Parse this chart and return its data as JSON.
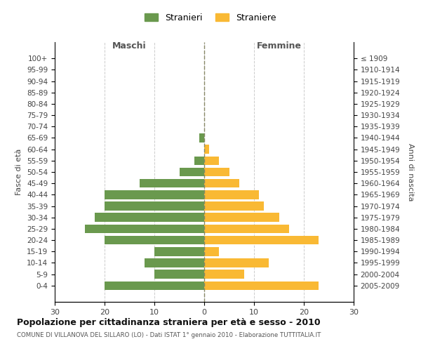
{
  "age_groups_bottom_to_top": [
    "0-4",
    "5-9",
    "10-14",
    "15-19",
    "20-24",
    "25-29",
    "30-34",
    "35-39",
    "40-44",
    "45-49",
    "50-54",
    "55-59",
    "60-64",
    "65-69",
    "70-74",
    "75-79",
    "80-84",
    "85-89",
    "90-94",
    "95-99",
    "100+"
  ],
  "birth_years_bottom_to_top": [
    "2005-2009",
    "2000-2004",
    "1995-1999",
    "1990-1994",
    "1985-1989",
    "1980-1984",
    "1975-1979",
    "1970-1974",
    "1965-1969",
    "1960-1964",
    "1955-1959",
    "1950-1954",
    "1945-1949",
    "1940-1944",
    "1935-1939",
    "1930-1934",
    "1925-1929",
    "1920-1924",
    "1915-1919",
    "1910-1914",
    "≤ 1909"
  ],
  "males_bottom_to_top": [
    20,
    10,
    12,
    10,
    20,
    24,
    22,
    20,
    20,
    13,
    5,
    2,
    0,
    1,
    0,
    0,
    0,
    0,
    0,
    0,
    0
  ],
  "females_bottom_to_top": [
    23,
    8,
    13,
    3,
    23,
    17,
    15,
    12,
    11,
    7,
    5,
    3,
    1,
    0,
    0,
    0,
    0,
    0,
    0,
    0,
    0
  ],
  "male_color": "#6a994e",
  "female_color": "#f9b934",
  "background_color": "#ffffff",
  "grid_color": "#cccccc",
  "title": "Popolazione per cittadinanza straniera per età e sesso - 2010",
  "subtitle": "COMUNE DI VILLANOVA DEL SILLARO (LO) - Dati ISTAT 1° gennaio 2010 - Elaborazione TUTTITALIA.IT",
  "ylabel_left": "Fasce di età",
  "ylabel_right": "Anni di nascita",
  "xlim": 30,
  "legend_stranieri": "Stranieri",
  "legend_straniere": "Straniere",
  "maschi_label": "Maschi",
  "femmine_label": "Femmine"
}
